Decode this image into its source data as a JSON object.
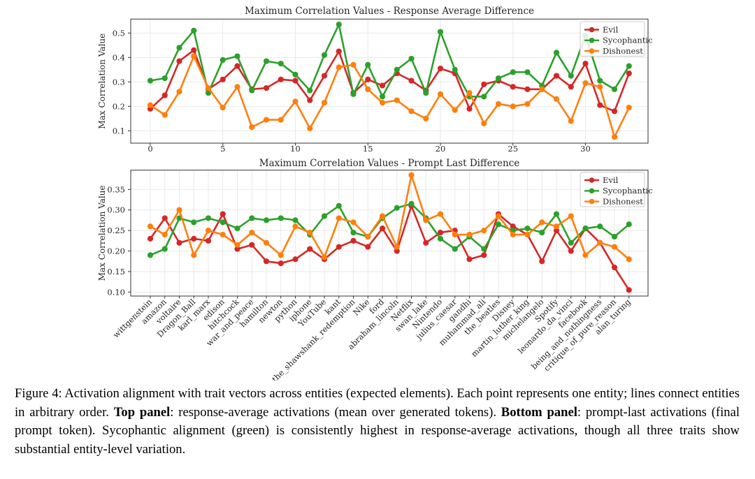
{
  "figure_label": "Figure 4:",
  "caption": {
    "segments": [
      {
        "t": "Figure 4: Activation alignment with trait vectors across entities (expected elements). Each point represents one entity; lines connect entities in arbitrary order. ",
        "b": false
      },
      {
        "t": "Top panel",
        "b": true
      },
      {
        "t": ": response-average activations (mean over generated tokens). ",
        "b": false
      },
      {
        "t": "Bottom panel",
        "b": true
      },
      {
        "t": ": prompt-last activations (final prompt token). Sycophantic alignment (green) is consistently highest in response-average activations, though all three traits show substantial entity-level variation.",
        "b": false
      }
    ]
  },
  "colors": {
    "evil": "#d62728",
    "sycophantic": "#2ca02c",
    "dishonest": "#ff7f0e",
    "grid": "#e6e6e6",
    "frame": "#333333",
    "legend_border": "#cccccc"
  },
  "chart_data": [
    {
      "id": "response-average",
      "type": "line",
      "title": "Maximum Correlation Values - Response Average Difference",
      "ylabel": "Max Correlation Value",
      "x_tick_labels": [
        "0",
        "5",
        "10",
        "15",
        "20",
        "25",
        "30"
      ],
      "x_tick_positions": [
        0,
        5,
        10,
        15,
        20,
        25,
        30
      ],
      "y_ticks": [
        0.1,
        0.2,
        0.3,
        0.4,
        0.5
      ],
      "y_tick_labels": [
        "0.1",
        "0.2",
        "0.3",
        "0.4",
        "0.5"
      ],
      "ylim": [
        0.05,
        0.557
      ],
      "n_points": 34,
      "legend_position": "upper right",
      "grid": true,
      "legend": [
        "Evil",
        "Sycophantic",
        "Dishonest"
      ],
      "series": [
        {
          "name": "Evil",
          "color": "#d62728",
          "values": [
            0.19,
            0.245,
            0.385,
            0.43,
            0.27,
            0.31,
            0.365,
            0.27,
            0.275,
            0.31,
            0.305,
            0.225,
            0.325,
            0.425,
            0.255,
            0.31,
            0.285,
            0.335,
            0.305,
            0.265,
            0.355,
            0.335,
            0.19,
            0.29,
            0.305,
            0.28,
            0.27,
            0.27,
            0.325,
            0.28,
            0.375,
            0.205,
            0.18,
            0.335
          ]
        },
        {
          "name": "Sycophantic",
          "color": "#2ca02c",
          "values": [
            0.305,
            0.315,
            0.44,
            0.51,
            0.255,
            0.39,
            0.405,
            0.265,
            0.385,
            0.375,
            0.33,
            0.265,
            0.41,
            0.535,
            0.25,
            0.37,
            0.24,
            0.35,
            0.395,
            0.255,
            0.505,
            0.35,
            0.24,
            0.24,
            0.315,
            0.34,
            0.34,
            0.285,
            0.42,
            0.325,
            0.49,
            0.305,
            0.27,
            0.365
          ]
        },
        {
          "name": "Dishonest",
          "color": "#ff7f0e",
          "values": [
            0.205,
            0.165,
            0.26,
            0.405,
            0.275,
            0.195,
            0.28,
            0.115,
            0.145,
            0.145,
            0.22,
            0.11,
            0.215,
            0.36,
            0.37,
            0.27,
            0.215,
            0.225,
            0.18,
            0.15,
            0.25,
            0.185,
            0.255,
            0.13,
            0.21,
            0.2,
            0.21,
            0.27,
            0.23,
            0.14,
            0.295,
            0.28,
            0.075,
            0.195
          ]
        }
      ]
    },
    {
      "id": "prompt-last",
      "type": "line",
      "title": "Maximum Correlation Values - Prompt Last Difference",
      "ylabel": "Max Correlation Value",
      "categories": [
        "wittgenstein",
        "amazon",
        "voltaire",
        "Dragon_Ball",
        "karl_marx",
        "edison",
        "hitchcock",
        "war_and_peace",
        "hamilton",
        "newton",
        "python",
        "iphone",
        "YouTube",
        "kant",
        "the_shawshank_redemption",
        "Nike",
        "ford",
        "abraham_lincoln",
        "Netflix",
        "swan_lake",
        "Nintendo",
        "julius_caesar",
        "gandhi",
        "muhammad_ali",
        "the_beatles",
        "Disney",
        "martin_luther_king",
        "michelangelo",
        "Spotify",
        "leonardo_da_vinci",
        "facebook",
        "being_and_nothingness",
        "critique_of_pure_reason",
        "alan_turing"
      ],
      "y_ticks": [
        0.1,
        0.15,
        0.2,
        0.25,
        0.3,
        0.35
      ],
      "y_tick_labels": [
        "0.10",
        "0.15",
        "0.20",
        "0.25",
        "0.30",
        "0.35"
      ],
      "ylim": [
        0.09,
        0.397
      ],
      "n_points": 34,
      "legend_position": "upper right",
      "grid": true,
      "legend": [
        "Evil",
        "Sycophantic",
        "Dishonest"
      ],
      "series": [
        {
          "name": "Evil",
          "color": "#d62728",
          "values": [
            0.23,
            0.28,
            0.22,
            0.23,
            0.225,
            0.29,
            0.205,
            0.215,
            0.175,
            0.17,
            0.18,
            0.205,
            0.18,
            0.21,
            0.225,
            0.21,
            0.255,
            0.2,
            0.31,
            0.22,
            0.245,
            0.25,
            0.18,
            0.19,
            0.29,
            0.26,
            0.24,
            0.175,
            0.25,
            0.2,
            0.255,
            0.22,
            0.16,
            0.105
          ]
        },
        {
          "name": "Sycophantic",
          "color": "#2ca02c",
          "values": [
            0.19,
            0.205,
            0.28,
            0.27,
            0.28,
            0.27,
            0.255,
            0.28,
            0.275,
            0.28,
            0.275,
            0.24,
            0.285,
            0.31,
            0.245,
            0.235,
            0.28,
            0.305,
            0.315,
            0.28,
            0.23,
            0.205,
            0.235,
            0.205,
            0.265,
            0.25,
            0.255,
            0.245,
            0.29,
            0.22,
            0.255,
            0.26,
            0.235,
            0.265
          ]
        },
        {
          "name": "Dishonest",
          "color": "#ff7f0e",
          "values": [
            0.26,
            0.24,
            0.3,
            0.19,
            0.25,
            0.24,
            0.215,
            0.245,
            0.22,
            0.19,
            0.26,
            0.245,
            0.185,
            0.28,
            0.27,
            0.235,
            0.285,
            0.21,
            0.385,
            0.275,
            0.29,
            0.24,
            0.24,
            0.25,
            0.285,
            0.24,
            0.24,
            0.27,
            0.26,
            0.285,
            0.19,
            0.22,
            0.21,
            0.18
          ]
        }
      ]
    }
  ]
}
